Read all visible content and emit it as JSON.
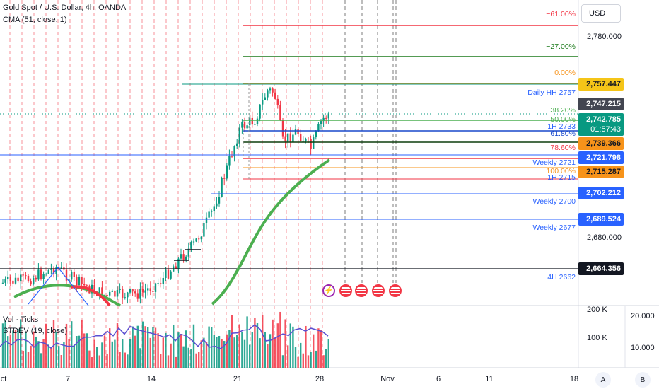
{
  "header": {
    "symbol_line": "Gold Spot / U.S. Dollar, 4h, OANDA",
    "indicator_line": "CMA (51, close, 1)"
  },
  "currency_button": "USD",
  "price_axis": {
    "ticks": [
      "2,780.000",
      "2,680.000"
    ],
    "pills": [
      {
        "text": "2,757.447",
        "color": "#f5c518",
        "text_color": "#131722"
      },
      {
        "text": "2,747.215",
        "color": "#434651",
        "text_color": "#ffffff"
      },
      {
        "text": "2,742.785",
        "sub": "01:57:43",
        "color": "#089981",
        "text_color": "#ffffff"
      },
      {
        "text": "2,739.366",
        "color": "#f7931a",
        "text_color": "#131722"
      },
      {
        "text": "2,721.798",
        "color": "#2962ff",
        "text_color": "#ffffff"
      },
      {
        "text": "2,715.287",
        "color": "#f7931a",
        "text_color": "#131722"
      },
      {
        "text": "2,702.212",
        "color": "#2962ff",
        "text_color": "#ffffff"
      },
      {
        "text": "2,689.524",
        "color": "#2962ff",
        "text_color": "#ffffff"
      },
      {
        "text": "2,664.356",
        "color": "#131722",
        "text_color": "#ffffff"
      }
    ]
  },
  "fib_levels": [
    {
      "label": "−61.00%",
      "color": "#f23645"
    },
    {
      "label": "−27.00%",
      "color": "#1b7a1b"
    },
    {
      "label": "0.00%",
      "color": "#f7931a"
    },
    {
      "label": "38.20%",
      "color": "#4caf50"
    },
    {
      "label": "50.00%",
      "color": "#4caf50"
    },
    {
      "label": "61.80%",
      "color": "#1848cc"
    },
    {
      "label": "78.60%",
      "color": "#f23645"
    },
    {
      "label": "100.00%",
      "color": "#f7931a"
    }
  ],
  "sr_labels": [
    {
      "label": "Daily HH 2757",
      "color": "#2962ff"
    },
    {
      "label": "1H 2733",
      "color": "#2962ff"
    },
    {
      "label": "Weekly 2721",
      "color": "#2962ff"
    },
    {
      "label": "1H 2715",
      "color": "#2962ff"
    },
    {
      "label": "Weekly 2700",
      "color": "#2962ff"
    },
    {
      "label": "Weekly 2677",
      "color": "#2962ff"
    },
    {
      "label": "4H 2662",
      "color": "#2962ff"
    }
  ],
  "lower_pane": {
    "legend_vol": "Vol · Ticks",
    "legend_stdev": "STDEV (19, close)",
    "vol_ticks": [
      "200 K",
      "100 K"
    ],
    "stdev_ticks": [
      "20.000",
      "10.000"
    ]
  },
  "time_axis": {
    "labels": [
      "ct",
      "7",
      "14",
      "21",
      "28",
      "Nov",
      "6",
      "11",
      "18"
    ]
  },
  "corner_buttons": [
    "A",
    "B"
  ],
  "events": [
    {
      "icon": "lightning-icon"
    },
    {
      "icon": "us-flag-icon"
    },
    {
      "icon": "us-flag-icon"
    },
    {
      "icon": "us-flag-icon"
    },
    {
      "icon": "us-flag-icon"
    }
  ]
}
